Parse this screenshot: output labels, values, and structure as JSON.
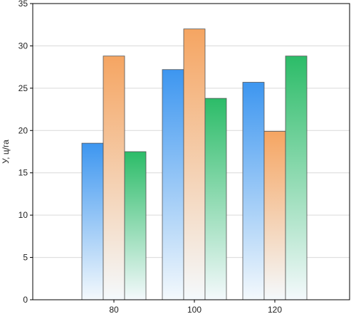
{
  "chart_data": {
    "type": "bar",
    "title": "",
    "xlabel": "",
    "ylabel": "У, ц/га",
    "categories": [
      "80",
      "100",
      "120"
    ],
    "ylim": [
      0,
      35
    ],
    "yticks": [
      0,
      5,
      10,
      15,
      20,
      25,
      30,
      35
    ],
    "grid": true,
    "legend": "none",
    "series": [
      {
        "values": [
          18.5,
          27.2,
          25.7
        ],
        "color": "#3d96f0"
      },
      {
        "values": [
          28.8,
          32.0,
          19.9
        ],
        "color": "#f5a562"
      },
      {
        "values": [
          17.5,
          23.8,
          28.8
        ],
        "color": "#2cbc68"
      }
    ]
  }
}
